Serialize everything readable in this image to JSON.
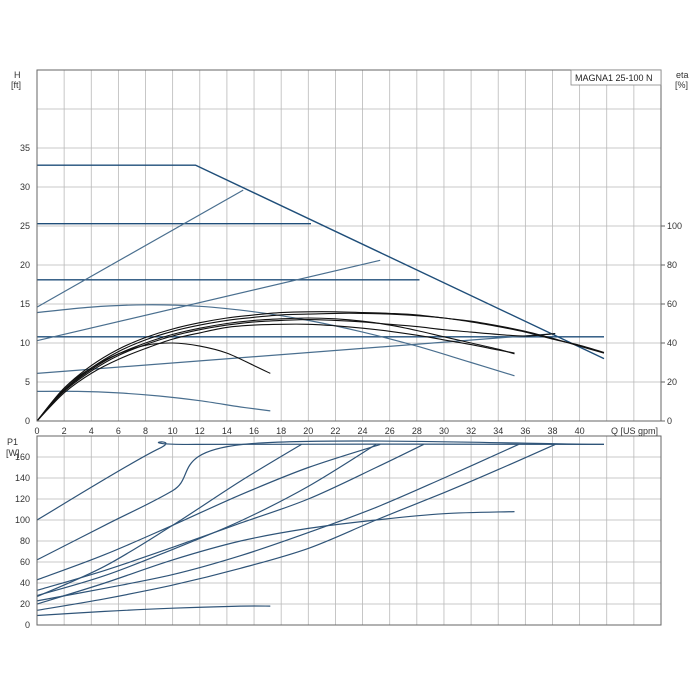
{
  "chart_data": [
    {
      "type": "line",
      "title": "",
      "model": "MAGNA1 25-100 N",
      "xlabel": "Q [US gpm]",
      "ylabel": [
        "H",
        "[ft]"
      ],
      "y2label": [
        "eta",
        "[%]"
      ],
      "xlim": [
        0,
        46
      ],
      "ylim": [
        0,
        45
      ],
      "y2lim": [
        0,
        180
      ],
      "x_ticks": [
        0,
        2,
        4,
        6,
        8,
        10,
        12,
        14,
        16,
        18,
        20,
        22,
        24,
        26,
        28,
        30,
        32,
        34,
        36,
        38,
        40
      ],
      "x_tick_labels": [
        "0",
        "2",
        "4",
        "6",
        "8",
        "10",
        "12",
        "14",
        "16",
        "18",
        "20",
        "22",
        "24",
        "26",
        "28",
        "30",
        "32",
        "34",
        "36",
        "38",
        "40"
      ],
      "y_ticks": [
        0,
        5,
        10,
        15,
        20,
        25,
        30,
        35
      ],
      "y2_ticks": [
        0,
        20,
        40,
        60,
        80,
        100
      ],
      "grid": true,
      "colors": {
        "head": "#1f4e79",
        "curve": "#4a6f8f",
        "eta": "#111111"
      },
      "series": [
        {
          "x": [
            0,
            11.7,
            41.8
          ],
          "y": [
            32.8,
            32.8,
            8
          ]
        },
        {
          "x": [
            0,
            20.2
          ],
          "y": [
            25.3,
            25.3
          ]
        },
        {
          "x": [
            0,
            28.2
          ],
          "y": [
            18.1,
            18.1
          ]
        },
        {
          "x": [
            0,
            41.8
          ],
          "y": [
            10.8,
            10.8
          ]
        },
        {
          "x": [
            0,
            15.2
          ],
          "y": [
            14.6,
            29.6
          ]
        },
        {
          "x": [
            0,
            25.3
          ],
          "y": [
            10.3,
            20.6
          ]
        },
        {
          "x": [
            0,
            38.2
          ],
          "y": [
            6.1,
            11.2
          ]
        },
        {
          "x": [
            0,
            4,
            8,
            12,
            16,
            20,
            24,
            28,
            32,
            35.2
          ],
          "y": [
            13.9,
            14.6,
            14.9,
            14.7,
            14.0,
            12.9,
            11.4,
            9.6,
            7.5,
            5.8
          ]
        },
        {
          "x": [
            0,
            3,
            6,
            9,
            12,
            15,
            17.2
          ],
          "y": [
            3.8,
            3.8,
            3.6,
            3.2,
            2.6,
            1.8,
            1.3
          ]
        },
        {
          "x": [
            0,
            2,
            4,
            6,
            8,
            10,
            12,
            14,
            16,
            17.2
          ],
          "y": [
            0,
            4.2,
            6.8,
            8.6,
            9.7,
            10.0,
            9.6,
            8.7,
            7.1,
            6.1
          ]
        },
        {
          "x": [
            0,
            2,
            4,
            6,
            8,
            10,
            12,
            14,
            16,
            18,
            20,
            22,
            24,
            26,
            28,
            30,
            32,
            34,
            35.2
          ],
          "y": [
            0,
            3.6,
            6.1,
            7.9,
            9.3,
            10.5,
            11.3,
            12.0,
            12.3,
            12.4,
            12.4,
            12.2,
            11.9,
            11.5,
            11.0,
            10.4,
            9.8,
            9.1,
            8.7
          ]
        },
        {
          "x": [
            0,
            2,
            4,
            6,
            8,
            10,
            12,
            14,
            16,
            18,
            20,
            22,
            24,
            26,
            28,
            30,
            32,
            34,
            36,
            38.2
          ],
          "y": [
            0,
            3.8,
            6.4,
            8.4,
            9.8,
            10.9,
            11.7,
            12.3,
            12.7,
            12.9,
            13.0,
            12.9,
            12.7,
            12.4,
            12.1,
            11.7,
            11.4,
            11.1,
            10.9,
            11.2
          ]
        },
        {
          "x": [
            0,
            2,
            4,
            6,
            8,
            10,
            12,
            14,
            16,
            18,
            20,
            22,
            24,
            26,
            28,
            30,
            32,
            34,
            36,
            38,
            40,
            41.8
          ],
          "y": [
            0,
            4.0,
            6.8,
            8.9,
            10.4,
            11.5,
            12.3,
            12.9,
            13.3,
            13.6,
            13.7,
            13.8,
            13.8,
            13.7,
            13.5,
            13.2,
            12.7,
            12.1,
            11.4,
            10.5,
            9.7,
            8.8
          ]
        },
        {
          "x": [
            0,
            2,
            4,
            6,
            8,
            10,
            12,
            14,
            16,
            18,
            20,
            22,
            24,
            26,
            28,
            30,
            32,
            34,
            36,
            38,
            40,
            41.8
          ],
          "y": [
            0,
            4.2,
            7.1,
            9.2,
            10.7,
            11.8,
            12.6,
            13.2,
            13.6,
            13.9,
            14.0,
            14.0,
            13.9,
            13.8,
            13.6,
            13.2,
            12.8,
            12.2,
            11.5,
            10.6,
            9.6,
            8.7
          ]
        },
        {
          "x": [
            0,
            2,
            4,
            6,
            8,
            10,
            12,
            14,
            16,
            18,
            20,
            22,
            24,
            26,
            28,
            30,
            32,
            34,
            35.2
          ],
          "y": [
            0,
            3.9,
            6.6,
            8.6,
            10.0,
            11.1,
            11.9,
            12.5,
            12.9,
            13.1,
            13.2,
            13.1,
            12.8,
            12.3,
            11.6,
            10.8,
            10.0,
            9.2,
            8.6
          ]
        }
      ]
    },
    {
      "type": "line",
      "title": "",
      "xlabel": "",
      "ylabel": [
        "P1",
        "[W]"
      ],
      "xlim": [
        0,
        46
      ],
      "ylim": [
        0,
        180
      ],
      "x_ticks": [
        0,
        2,
        4,
        6,
        8,
        10,
        12,
        14,
        16,
        18,
        20,
        22,
        24,
        26,
        28,
        30,
        32,
        34,
        36,
        38,
        40
      ],
      "y_ticks": [
        0,
        20,
        40,
        60,
        80,
        100,
        120,
        140,
        160
      ],
      "grid": true,
      "colors": {
        "power": "#2f5478"
      },
      "series": [
        {
          "x": [
            0,
            9,
            11.7,
            41.8
          ],
          "y": [
            100,
            168,
            172,
            172
          ]
        },
        {
          "x": [
            0,
            5,
            10,
            15.2,
            41.8
          ],
          "y": [
            62,
            95,
            128,
            172,
            172
          ]
        },
        {
          "x": [
            0,
            5,
            10,
            15,
            19.5
          ],
          "y": [
            27,
            56,
            95,
            137,
            172
          ]
        },
        {
          "x": [
            0,
            5,
            10,
            15,
            20,
            25.3
          ],
          "y": [
            43,
            67,
            95,
            124,
            150,
            172
          ]
        },
        {
          "x": [
            0,
            5,
            10,
            15,
            20,
            25
          ],
          "y": [
            28,
            47,
            72,
            99,
            132,
            172
          ]
        },
        {
          "x": [
            0,
            5,
            10,
            15,
            20,
            25,
            28.5
          ],
          "y": [
            33,
            52,
            74,
            97,
            120,
            150,
            172
          ]
        },
        {
          "x": [
            0,
            5,
            10,
            15,
            20,
            25,
            30,
            35.2
          ],
          "y": [
            20,
            40,
            62,
            80,
            92,
            100,
            106,
            108
          ]
        },
        {
          "x": [
            0,
            5,
            10,
            15,
            20,
            25,
            30,
            35.5
          ],
          "y": [
            23,
            35,
            48,
            66,
            88,
            112,
            140,
            172
          ]
        },
        {
          "x": [
            0,
            5,
            10,
            15,
            20,
            25,
            30,
            34,
            38.2
          ],
          "y": [
            14,
            25,
            38,
            54,
            73,
            100,
            126,
            148,
            172
          ]
        },
        {
          "x": [
            0,
            5,
            10,
            15,
            17.2
          ],
          "y": [
            9,
            13,
            16,
            18,
            18
          ]
        }
      ]
    }
  ]
}
